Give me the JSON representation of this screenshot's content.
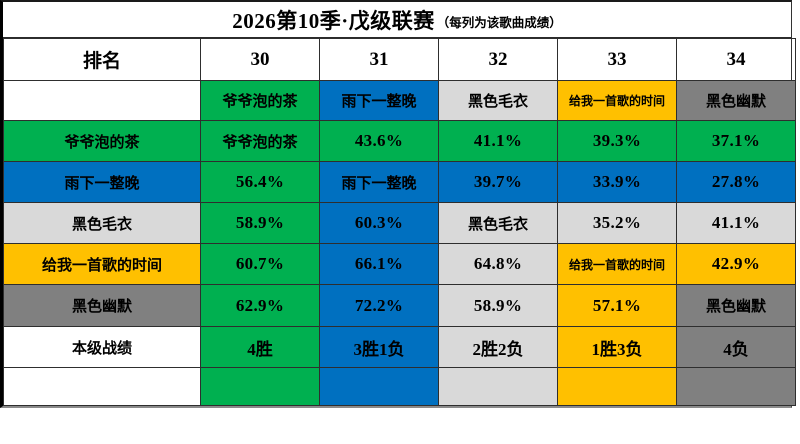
{
  "title": {
    "main": "2026第10季·戊级联赛",
    "note": "（每列为该歌曲成绩）"
  },
  "table": {
    "rank_header": "排名",
    "column_numbers": [
      "30",
      "31",
      "32",
      "33",
      "34"
    ],
    "songs": [
      {
        "name": "爷爷泡的茶",
        "color": "#00B050"
      },
      {
        "name": "雨下一整晚",
        "color": "#0070C0"
      },
      {
        "name": "黑色毛衣",
        "color": "#D9D9D9"
      },
      {
        "name": "给我一首歌的时间",
        "color": "#FFC000"
      },
      {
        "name": "黑色幽默",
        "color": "#808080"
      }
    ],
    "matrix": [
      [
        null,
        "43.6%",
        "41.1%",
        "39.3%",
        "37.1%"
      ],
      [
        "56.4%",
        null,
        "39.7%",
        "33.9%",
        "27.8%"
      ],
      [
        "58.9%",
        "60.3%",
        null,
        "35.2%",
        "41.1%"
      ],
      [
        "60.7%",
        "66.1%",
        "64.8%",
        null,
        "42.9%"
      ],
      [
        "62.9%",
        "72.2%",
        "58.9%",
        "57.1%",
        null
      ]
    ],
    "record_row": {
      "label": "本级战绩",
      "values": [
        "4胜",
        "3胜1负",
        "2胜2负",
        "1胜3负",
        "4负"
      ]
    }
  },
  "chart_data": {
    "type": "table",
    "title": "2026第10季·戊级联赛（每列为该歌曲成绩）",
    "columns": [
      "排名",
      "30",
      "31",
      "32",
      "33",
      "34"
    ],
    "rows": [
      [
        "",
        "爷爷泡的茶",
        "雨下一整晚",
        "黑色毛衣",
        "给我一首歌的时间",
        "黑色幽默"
      ],
      [
        "爷爷泡的茶",
        "爷爷泡的茶",
        "43.6%",
        "41.1%",
        "39.3%",
        "37.1%"
      ],
      [
        "雨下一整晚",
        "56.4%",
        "雨下一整晚",
        "39.7%",
        "33.9%",
        "27.8%"
      ],
      [
        "黑色毛衣",
        "58.9%",
        "60.3%",
        "黑色毛衣",
        "35.2%",
        "41.1%"
      ],
      [
        "给我一首歌的时间",
        "60.7%",
        "66.1%",
        "64.8%",
        "给我一首歌的时间",
        "42.9%"
      ],
      [
        "黑色幽默",
        "62.9%",
        "72.2%",
        "58.9%",
        "57.1%",
        "黑色幽默"
      ],
      [
        "本级战绩",
        "4胜",
        "3胜1负",
        "2胜2负",
        "1胜3负",
        "4负"
      ],
      [
        "",
        "",
        "",
        "",
        "",
        ""
      ]
    ],
    "legend_colors": {
      "爷爷泡的茶": "#00B050",
      "雨下一整晚": "#0070C0",
      "黑色毛衣": "#D9D9D9",
      "给我一首歌的时间": "#FFC000",
      "黑色幽默": "#808080"
    },
    "notes": "cell color = winner's song color; below-diagonal cells take column color, above-diagonal take row color"
  }
}
